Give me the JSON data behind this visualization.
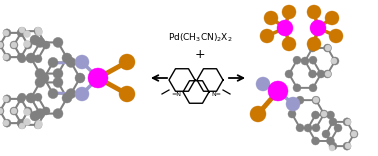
{
  "bg_color": "#ffffff",
  "pd_color": "#FF00FF",
  "n_ligand_color": "#9999CC",
  "c_color": "#808080",
  "h_color": "#D0D0D0",
  "x_color": "#CC7700",
  "text_color": "#000000",
  "bond_color": "#555555",
  "figsize": [
    3.78,
    1.56
  ],
  "dpi": 100
}
